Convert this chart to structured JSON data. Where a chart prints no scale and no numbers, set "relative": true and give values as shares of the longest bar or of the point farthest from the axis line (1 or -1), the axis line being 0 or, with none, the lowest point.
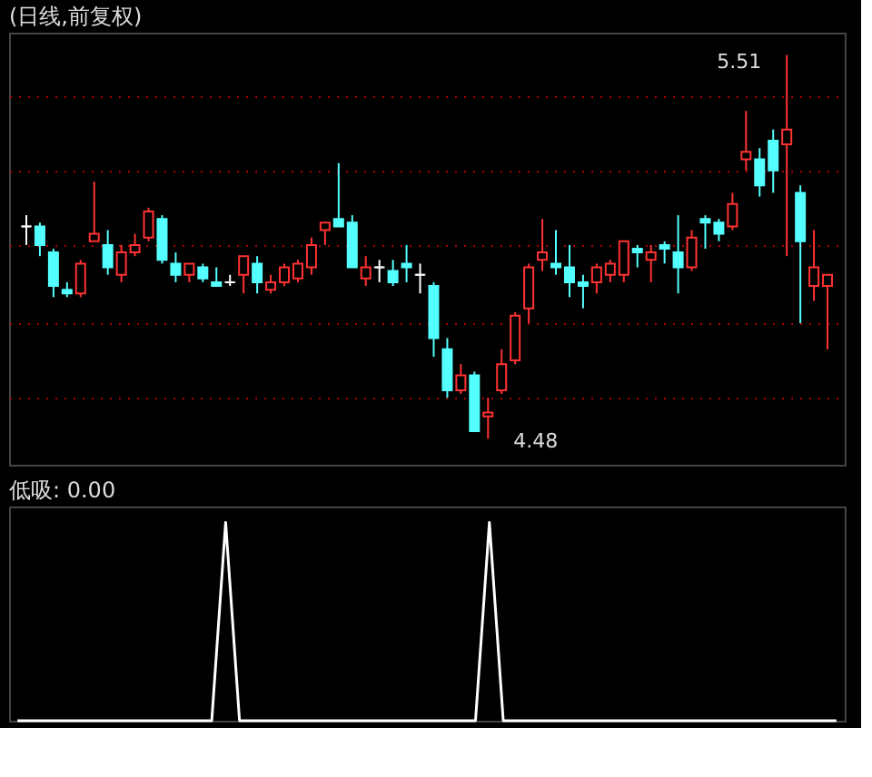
{
  "chart_data": [
    {
      "type": "candlestick",
      "title": "(日线,前复权)",
      "categories": [
        null,
        null,
        null,
        null,
        null,
        null,
        null,
        null,
        null,
        null,
        null,
        null,
        null,
        null,
        null,
        null,
        null,
        null,
        null,
        null,
        null,
        null,
        null,
        null,
        null,
        null,
        null,
        null,
        null,
        null,
        null,
        null,
        null,
        null,
        null,
        null,
        null,
        null,
        null,
        null,
        null,
        null,
        null,
        null,
        null,
        null,
        null,
        null,
        null,
        null,
        null,
        null,
        null,
        null,
        null,
        null,
        null,
        null,
        null,
        null
      ],
      "ohlc": [
        [
          5.05,
          5.08,
          5.0,
          5.05
        ],
        [
          5.05,
          5.06,
          4.97,
          5.0
        ],
        [
          4.98,
          4.99,
          4.86,
          4.89
        ],
        [
          4.88,
          4.9,
          4.86,
          4.87
        ],
        [
          4.87,
          4.96,
          4.86,
          4.95
        ],
        [
          5.01,
          5.17,
          5.01,
          5.03
        ],
        [
          5.0,
          5.04,
          4.92,
          4.94
        ],
        [
          4.92,
          5.0,
          4.9,
          4.98
        ],
        [
          4.98,
          5.03,
          4.97,
          5.0
        ],
        [
          5.02,
          5.1,
          5.01,
          5.09
        ],
        [
          5.07,
          5.08,
          4.95,
          4.96
        ],
        [
          4.95,
          4.98,
          4.9,
          4.92
        ],
        [
          4.92,
          4.95,
          4.9,
          4.95
        ],
        [
          4.94,
          4.95,
          4.9,
          4.91
        ],
        [
          4.9,
          4.94,
          4.89,
          4.89
        ],
        [
          4.9,
          4.92,
          4.89,
          4.9
        ],
        [
          4.92,
          4.97,
          4.87,
          4.97
        ],
        [
          4.95,
          4.97,
          4.87,
          4.9
        ],
        [
          4.88,
          4.92,
          4.87,
          4.9
        ],
        [
          4.9,
          4.95,
          4.89,
          4.94
        ],
        [
          4.91,
          4.96,
          4.9,
          4.95
        ],
        [
          4.94,
          5.02,
          4.92,
          5.0
        ],
        [
          5.04,
          5.06,
          5.0,
          5.06
        ],
        [
          5.07,
          5.22,
          5.05,
          5.05
        ],
        [
          5.06,
          5.08,
          4.94,
          4.94
        ],
        [
          4.91,
          4.97,
          4.89,
          4.94
        ],
        [
          4.94,
          4.96,
          4.9,
          4.94
        ],
        [
          4.93,
          4.96,
          4.89,
          4.9
        ],
        [
          4.95,
          5.0,
          4.9,
          4.94
        ],
        [
          4.92,
          4.95,
          4.87,
          4.92
        ],
        [
          4.89,
          4.9,
          4.7,
          4.75
        ],
        [
          4.72,
          4.75,
          4.59,
          4.61
        ],
        [
          4.61,
          4.68,
          4.6,
          4.65
        ],
        [
          4.65,
          4.66,
          4.5,
          4.5
        ],
        [
          4.54,
          4.59,
          4.48,
          4.55
        ],
        [
          4.61,
          4.72,
          4.6,
          4.68
        ],
        [
          4.69,
          4.82,
          4.68,
          4.81
        ],
        [
          4.83,
          4.95,
          4.79,
          4.94
        ],
        [
          4.96,
          5.07,
          4.93,
          4.98
        ],
        [
          4.95,
          5.04,
          4.92,
          4.94
        ],
        [
          4.94,
          5.0,
          4.86,
          4.9
        ],
        [
          4.9,
          4.92,
          4.83,
          4.89
        ],
        [
          4.9,
          4.95,
          4.87,
          4.94
        ],
        [
          4.92,
          4.96,
          4.9,
          4.95
        ],
        [
          4.92,
          5.01,
          4.9,
          5.01
        ],
        [
          4.99,
          5.0,
          4.94,
          4.98
        ],
        [
          4.96,
          5.0,
          4.9,
          4.98
        ],
        [
          5.0,
          5.01,
          4.95,
          4.99
        ],
        [
          4.98,
          5.08,
          4.87,
          4.94
        ],
        [
          4.94,
          5.04,
          4.93,
          5.02
        ],
        [
          5.07,
          5.08,
          4.99,
          5.06
        ],
        [
          5.06,
          5.07,
          5.01,
          5.03
        ],
        [
          5.05,
          5.14,
          5.04,
          5.11
        ],
        [
          5.23,
          5.36,
          5.2,
          5.25
        ],
        [
          5.23,
          5.26,
          5.13,
          5.16
        ],
        [
          5.28,
          5.31,
          5.14,
          5.2
        ],
        [
          5.27,
          5.51,
          4.97,
          5.31
        ],
        [
          5.14,
          5.16,
          4.79,
          5.01
        ],
        [
          4.89,
          5.04,
          4.85,
          4.94
        ],
        [
          4.89,
          4.92,
          4.72,
          4.92
        ]
      ],
      "colors": [
        "#ffffff",
        "#54ffff",
        "#54ffff",
        "#54ffff",
        "#ff3232",
        "#ff3232",
        "#54ffff",
        "#ff3232",
        "#ff3232",
        "#ff3232",
        "#54ffff",
        "#54ffff",
        "#ff3232",
        "#54ffff",
        "#54ffff",
        "#ffffff",
        "#ff3232",
        "#54ffff",
        "#ff3232",
        "#ff3232",
        "#ff3232",
        "#ff3232",
        "#ff3232",
        "#54ffff",
        "#54ffff",
        "#ff3232",
        "#ffffff",
        "#54ffff",
        "#54ffff",
        "#ffffff",
        "#54ffff",
        "#54ffff",
        "#ff3232",
        "#54ffff",
        "#ff3232",
        "#ff3232",
        "#ff3232",
        "#ff3232",
        "#ff3232",
        "#54ffff",
        "#54ffff",
        "#54ffff",
        "#ff3232",
        "#ff3232",
        "#ff3232",
        "#54ffff",
        "#ff3232",
        "#54ffff",
        "#54ffff",
        "#ff3232",
        "#54ffff",
        "#54ffff",
        "#ff3232",
        "#ff3232",
        "#54ffff",
        "#54ffff",
        "#ff3232",
        "#54ffff",
        "#ff3232",
        "#ff3232"
      ],
      "ylim": [
        4.41,
        5.57
      ],
      "yticks": [
        {
          "value": 4.59,
          "label": null
        },
        {
          "value": 4.79,
          "label": null
        },
        {
          "value": 5.0,
          "label": null
        },
        {
          "value": 5.2,
          "label": null
        },
        {
          "value": 5.4,
          "label": null
        }
      ],
      "grid": true,
      "tick_labels": false,
      "annotations": [
        "5.51",
        "4.48"
      ]
    },
    {
      "type": "line",
      "relative": true,
      "title": "低吸: 0.00",
      "categories": [
        null,
        null,
        null,
        null,
        null,
        null,
        null,
        null,
        null,
        null,
        null,
        null,
        null,
        null,
        null,
        null,
        null,
        null,
        null,
        null,
        null,
        null,
        null,
        null,
        null,
        null,
        null,
        null,
        null,
        null,
        null,
        null,
        null,
        null,
        null,
        null,
        null,
        null,
        null,
        null,
        null,
        null,
        null,
        null,
        null,
        null,
        null,
        null,
        null,
        null,
        null,
        null,
        null,
        null,
        null,
        null,
        null,
        null,
        null,
        null
      ],
      "series": [
        {
          "color": "#ffffff",
          "values": [
            0,
            0,
            0,
            0,
            0,
            0,
            0,
            0,
            0,
            0,
            0,
            0,
            0,
            0,
            0,
            1,
            0,
            0,
            0,
            0,
            0,
            0,
            0,
            0,
            0,
            0,
            0,
            0,
            0,
            0,
            0,
            0,
            0,
            0,
            1,
            0,
            0,
            0,
            0,
            0,
            0,
            0,
            0,
            0,
            0,
            0,
            0,
            0,
            0,
            0,
            0,
            0,
            0,
            0,
            0,
            0,
            0,
            0,
            0,
            0
          ]
        }
      ]
    }
  ]
}
